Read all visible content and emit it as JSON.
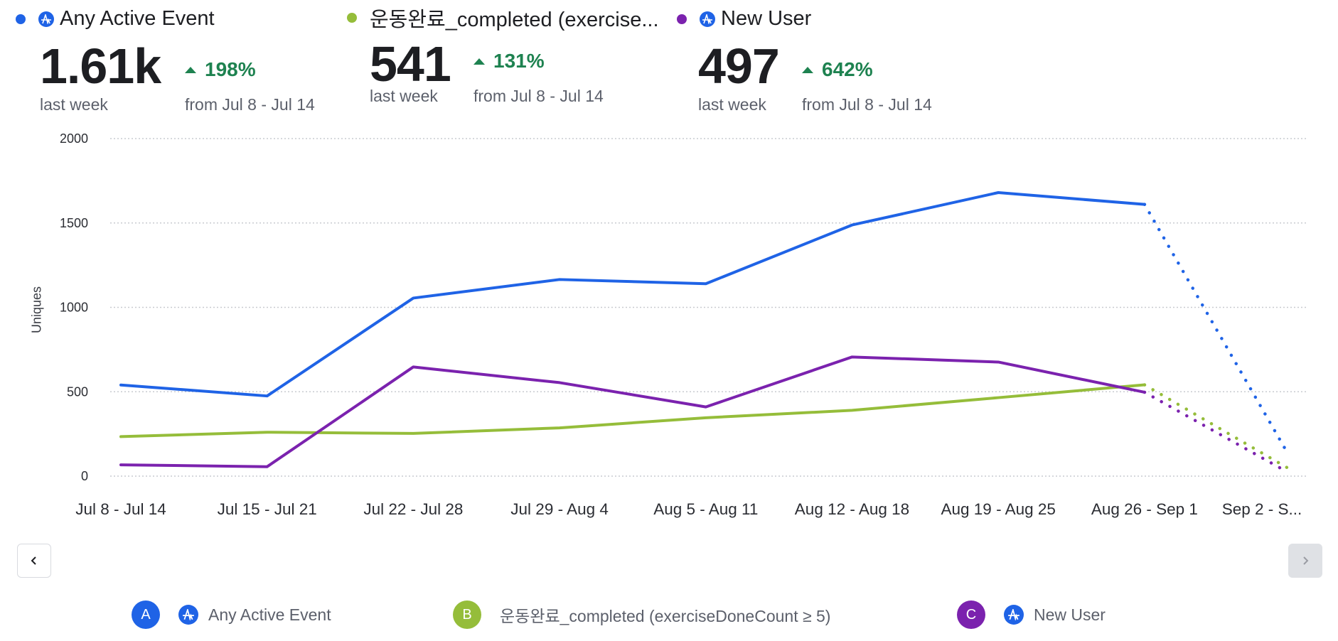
{
  "colors": {
    "series_a": "#1f63e6",
    "series_b": "#95bd3a",
    "series_c": "#7b22ae",
    "positive": "#1e8250",
    "grid": "#c9cbd0",
    "axis_text": "#2b2d33"
  },
  "summary": [
    {
      "dot_color": "#1f63e6",
      "has_amp_icon": true,
      "title": "Any Active Event",
      "value": "1.61k",
      "period_label": "last week",
      "change": "198%",
      "change_direction": "up",
      "compare_label": "from Jul 8 - Jul 14"
    },
    {
      "dot_color": "#95bd3a",
      "has_amp_icon": false,
      "title": "운동완료_completed (exercise...",
      "value": "541",
      "period_label": "last week",
      "change": "131%",
      "change_direction": "up",
      "compare_label": "from Jul 8 - Jul 14"
    },
    {
      "dot_color": "#7b22ae",
      "has_amp_icon": true,
      "title": "New User",
      "value": "497",
      "period_label": "last week",
      "change": "642%",
      "change_direction": "up",
      "compare_label": "from Jul 8 - Jul 14"
    }
  ],
  "chart_data": {
    "type": "line",
    "title": "",
    "xlabel": "",
    "ylabel": "Uniques",
    "ylim": [
      0,
      2000
    ],
    "yticks": [
      0,
      500,
      1000,
      1500,
      2000
    ],
    "grid": true,
    "categories": [
      "Jul 8 - Jul 14",
      "Jul 15 - Jul 21",
      "Jul 22 - Jul 28",
      "Jul 29 - Aug 4",
      "Aug 5 - Aug 11",
      "Aug 12 - Aug 18",
      "Aug 19 - Aug 25",
      "Aug 26 - Sep 1",
      "Sep 2 - S..."
    ],
    "incomplete_last_period": true,
    "series": [
      {
        "name": "Any Active Event",
        "color": "#1f63e6",
        "values": [
          540,
          475,
          1055,
          1165,
          1140,
          1488,
          1680,
          1610,
          140
        ]
      },
      {
        "name": "운동완료_completed (exerciseDoneCount ≥ 5)",
        "color": "#95bd3a",
        "values": [
          234,
          260,
          253,
          286,
          346,
          390,
          465,
          541,
          50
        ]
      },
      {
        "name": "New User",
        "color": "#7b22ae",
        "values": [
          67,
          56,
          647,
          554,
          410,
          706,
          676,
          497,
          25
        ]
      }
    ]
  },
  "navigation": {
    "prev_icon": "chevron-left-icon",
    "next_icon": "chevron-right-icon",
    "next_disabled": true
  },
  "legend": [
    {
      "badge": "A",
      "color": "#1f63e6",
      "has_amp_icon": true,
      "label": "Any Active Event"
    },
    {
      "badge": "B",
      "color": "#95bd3a",
      "has_amp_icon": false,
      "label": "운동완료_completed (exerciseDoneCount ≥ 5)"
    },
    {
      "badge": "C",
      "color": "#7b22ae",
      "has_amp_icon": true,
      "label": "New User"
    }
  ]
}
